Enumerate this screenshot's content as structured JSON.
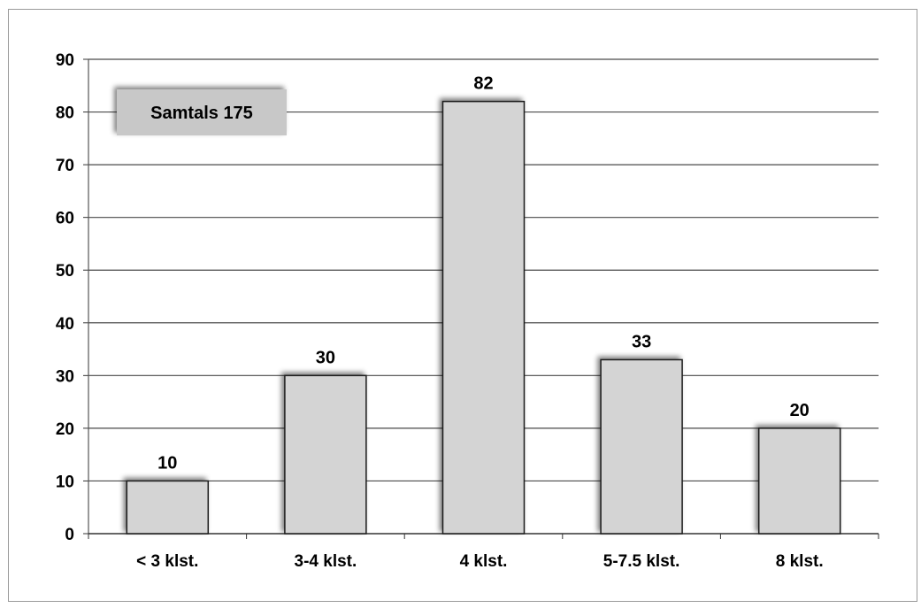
{
  "chart_data": {
    "type": "bar",
    "categories": [
      "< 3 klst.",
      "3-4 klst.",
      "4 klst.",
      "5-7.5 klst.",
      "8 klst."
    ],
    "values": [
      10,
      30,
      82,
      33,
      20
    ],
    "data_labels": [
      "10",
      "30",
      "82",
      "33",
      "20"
    ],
    "ylim": [
      0,
      90
    ],
    "yticks": [
      0,
      10,
      20,
      30,
      40,
      50,
      60,
      70,
      80,
      90
    ],
    "grid": true,
    "annotation": "Samtals 175",
    "colors": {
      "bar_fill": "#d4d4d4",
      "bar_stroke": "#1a1a1a",
      "annotation_fill": "#c8c8c8",
      "gridline": "#4a4a4a"
    }
  }
}
